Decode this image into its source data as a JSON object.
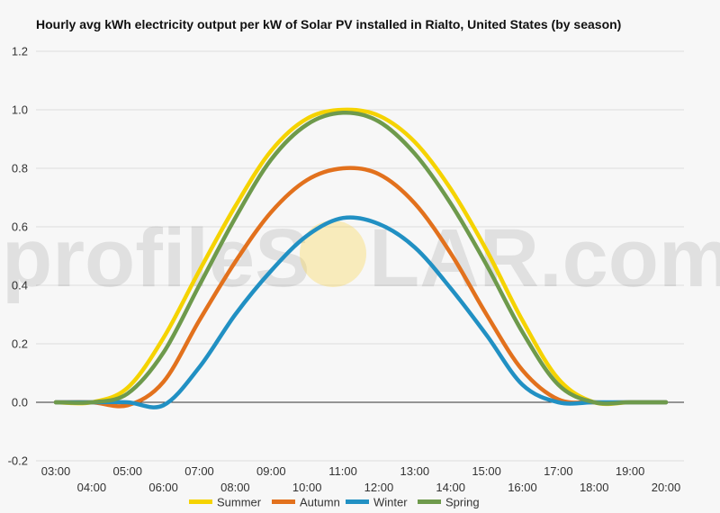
{
  "watermark": {
    "left": "profileS",
    "right": "LAR.com",
    "sun_color": "#f8d34a"
  },
  "chart_data": {
    "type": "line",
    "title": "Hourly avg kWh electricity output per kW of Solar PV installed in Rialto, United States (by season)",
    "xlabel": "",
    "ylabel": "",
    "ylim": [
      -0.2,
      1.2
    ],
    "yticks": [
      "-0.2",
      "0.0",
      "0.2",
      "0.4",
      "0.6",
      "0.8",
      "1.0",
      "1.2"
    ],
    "grid": true,
    "legend_position": "bottom",
    "x": [
      "03:00",
      "04:00",
      "05:00",
      "06:00",
      "07:00",
      "08:00",
      "09:00",
      "10:00",
      "11:00",
      "12:00",
      "13:00",
      "14:00",
      "15:00",
      "16:00",
      "17:00",
      "18:00",
      "19:00",
      "20:00"
    ],
    "series": [
      {
        "name": "Summer",
        "color": "#f5d300",
        "values": [
          0.0,
          0.0,
          0.05,
          0.22,
          0.45,
          0.67,
          0.86,
          0.97,
          1.0,
          0.98,
          0.89,
          0.73,
          0.52,
          0.28,
          0.08,
          0.0,
          0.0,
          0.0
        ]
      },
      {
        "name": "Autumn",
        "color": "#e2711d",
        "values": [
          0.0,
          0.0,
          -0.01,
          0.07,
          0.28,
          0.48,
          0.65,
          0.76,
          0.8,
          0.78,
          0.68,
          0.51,
          0.3,
          0.11,
          0.01,
          0.0,
          0.0,
          0.0
        ]
      },
      {
        "name": "Winter",
        "color": "#2190c3",
        "values": [
          0.0,
          0.0,
          0.0,
          -0.01,
          0.12,
          0.3,
          0.45,
          0.57,
          0.63,
          0.61,
          0.53,
          0.39,
          0.23,
          0.06,
          0.0,
          0.0,
          0.0,
          0.0
        ]
      },
      {
        "name": "Spring",
        "color": "#6e9a4c",
        "values": [
          0.0,
          0.0,
          0.03,
          0.17,
          0.4,
          0.63,
          0.83,
          0.95,
          0.99,
          0.96,
          0.85,
          0.68,
          0.47,
          0.24,
          0.06,
          0.0,
          0.0,
          0.0
        ]
      }
    ]
  }
}
